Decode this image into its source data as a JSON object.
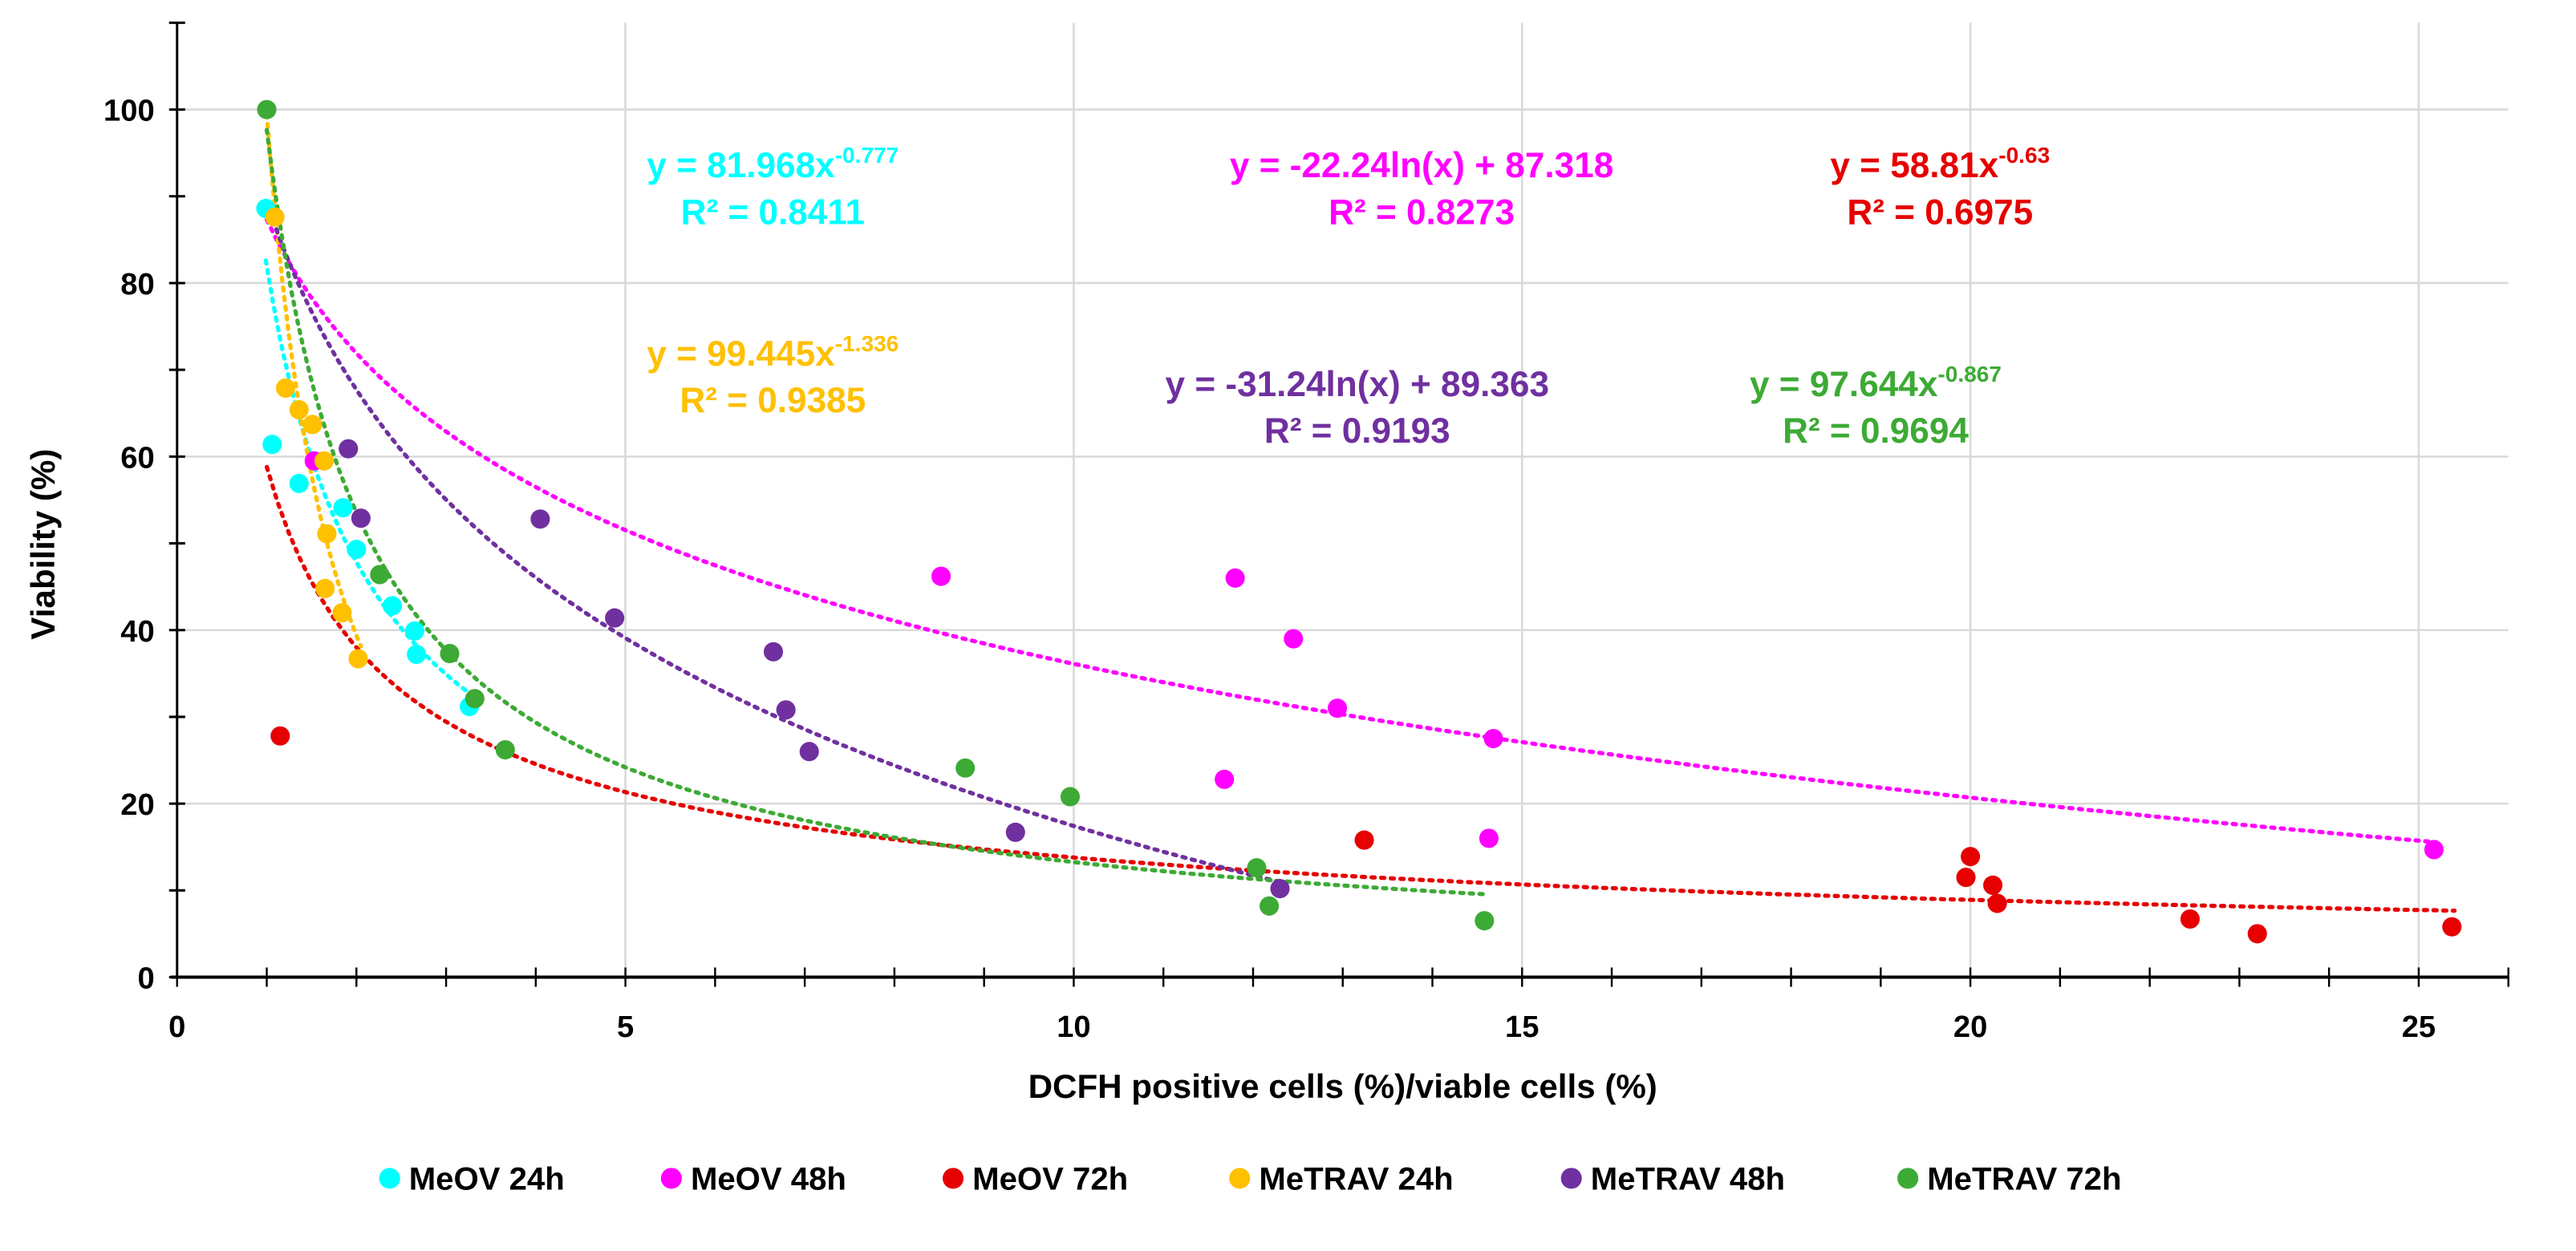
{
  "chart_data": {
    "type": "scatter",
    "xlabel": "DCFH positive cells (%)/viable  cells (%)",
    "ylabel": "Viability (%)",
    "xlim": [
      0,
      26
    ],
    "ylim": [
      0,
      110
    ],
    "x_ticks": [
      "0",
      "5",
      "10",
      "15",
      "20",
      "25"
    ],
    "y_ticks": [
      "0",
      "20",
      "40",
      "60",
      "80",
      "100"
    ],
    "grid": true,
    "legend_position": "bottom",
    "series": [
      {
        "name": "MeOV 24h",
        "color": "#00FFFF",
        "points": [
          [
            0.99,
            88.6
          ],
          [
            1.06,
            61.4
          ],
          [
            1.36,
            56.9
          ],
          [
            1.85,
            54.1
          ],
          [
            2.0,
            49.3
          ],
          [
            2.4,
            42.8
          ],
          [
            2.65,
            39.9
          ],
          [
            2.67,
            37.2
          ],
          [
            3.26,
            31.2
          ]
        ],
        "trendline": {
          "type": "power",
          "a": 81.968,
          "b": -0.777,
          "x_range": [
            0.99,
            3.3
          ]
        },
        "equation": "y = 81.968x",
        "exponent": "-0.777",
        "r2": "R² = 0.8411"
      },
      {
        "name": "MeOV 48h",
        "color": "#FF00FF",
        "points": [
          [
            1.53,
            59.5
          ],
          [
            8.52,
            46.2
          ],
          [
            11.8,
            46.0
          ],
          [
            12.45,
            39.0
          ],
          [
            12.94,
            31.0
          ],
          [
            11.68,
            22.8
          ],
          [
            14.68,
            27.5
          ],
          [
            14.63,
            16.0
          ],
          [
            25.17,
            14.7
          ]
        ],
        "trendline": {
          "type": "log",
          "a": -22.24,
          "b": 87.318,
          "x_range": [
            1.0,
            25.2
          ]
        },
        "equation": "y = -22.24ln(x) + 87.318",
        "exponent": "",
        "r2": "R² = 0.8273"
      },
      {
        "name": "MeOV 72h",
        "color": "#E60000",
        "points": [
          [
            1.15,
            27.8
          ],
          [
            13.24,
            15.8
          ],
          [
            20.0,
            13.9
          ],
          [
            19.95,
            11.5
          ],
          [
            20.25,
            10.6
          ],
          [
            20.3,
            8.5
          ],
          [
            22.45,
            6.7
          ],
          [
            23.2,
            5.0
          ],
          [
            25.37,
            5.8
          ]
        ],
        "trendline": {
          "type": "power",
          "a": 58.81,
          "b": -0.63,
          "x_range": [
            1.0,
            25.4
          ]
        },
        "equation": "y = 58.81x",
        "exponent": "-0.63",
        "r2": "R² = 0.6975"
      },
      {
        "name": "MeTRAV 24h",
        "color": "#FFC000",
        "points": [
          [
            1.09,
            87.6
          ],
          [
            1.21,
            67.9
          ],
          [
            1.36,
            65.4
          ],
          [
            1.51,
            63.7
          ],
          [
            1.64,
            59.5
          ],
          [
            1.67,
            51.1
          ],
          [
            1.65,
            44.8
          ],
          [
            1.84,
            42.0
          ],
          [
            2.02,
            36.7
          ]
        ],
        "trendline": {
          "type": "power",
          "a": 99.445,
          "b": -1.336,
          "x_range": [
            1.0,
            2.05
          ]
        },
        "equation": "y = 99.445x",
        "exponent": "-1.336",
        "r2": "R² = 0.9385"
      },
      {
        "name": "MeTRAV 48h",
        "color": "#7030A0",
        "points": [
          [
            1.91,
            60.9
          ],
          [
            2.05,
            52.9
          ],
          [
            4.05,
            52.8
          ],
          [
            4.88,
            41.4
          ],
          [
            6.65,
            37.5
          ],
          [
            6.79,
            30.8
          ],
          [
            7.05,
            26.0
          ],
          [
            9.35,
            16.7
          ],
          [
            12.3,
            10.2
          ]
        ],
        "trendline": {
          "type": "log",
          "a": -31.24,
          "b": 89.363,
          "x_range": [
            1.0,
            12.3
          ]
        },
        "equation": "y = -31.24ln(x) + 89.363",
        "exponent": "",
        "r2": "R² = 0.9193"
      },
      {
        "name": "MeTRAV 72h",
        "color": "#3DAA35",
        "points": [
          [
            1.0,
            100
          ],
          [
            2.26,
            46.4
          ],
          [
            3.04,
            37.3
          ],
          [
            3.32,
            32.1
          ],
          [
            3.66,
            26.2
          ],
          [
            8.79,
            24.1
          ],
          [
            9.96,
            20.8
          ],
          [
            12.04,
            12.6
          ],
          [
            12.18,
            8.2
          ],
          [
            14.58,
            6.5
          ]
        ],
        "trendline": {
          "type": "power",
          "a": 97.644,
          "b": -0.867,
          "x_range": [
            1.0,
            14.6
          ]
        },
        "equation": "y = 97.644x",
        "exponent": "-0.867",
        "r2": "R² = 0.9694"
      }
    ]
  }
}
